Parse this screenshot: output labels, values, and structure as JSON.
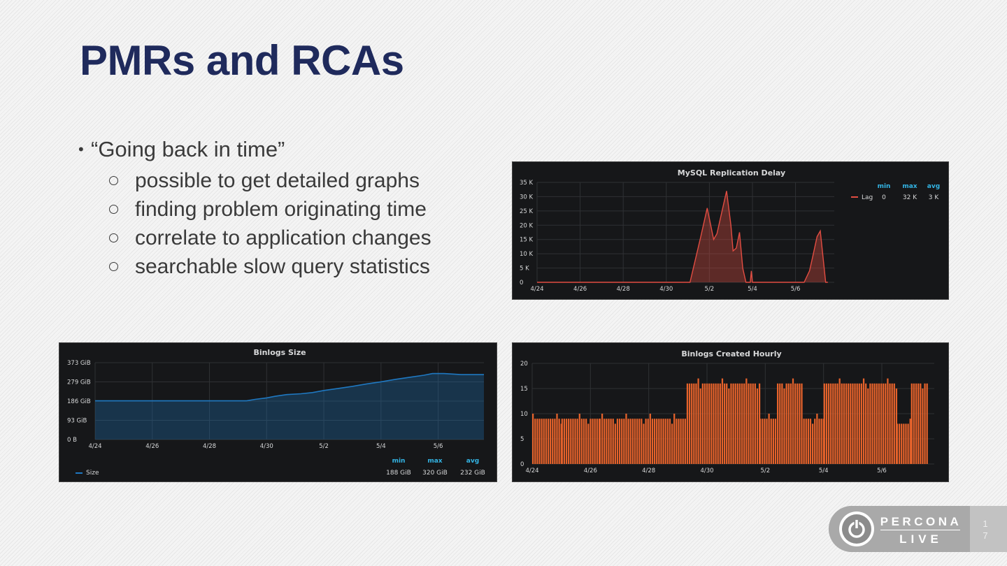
{
  "slide": {
    "title": "PMRs and RCAs",
    "bullet_main": "“Going back in time”",
    "sub_bullets": [
      "possible to get detailed graphs",
      "finding problem originating time",
      "correlate to application changes",
      "searchable slow query statistics"
    ],
    "page_number_1": "1",
    "page_number_2": "7"
  },
  "logo": {
    "top_text": "PERCONA",
    "bottom_text": "LIVE"
  },
  "colors": {
    "title": "#1f2a5c",
    "panel_bg": "#161719",
    "lag": "#e24d42",
    "size": "#1f78c1",
    "bars": "#e5622b",
    "legend_header": "#33b5e5"
  },
  "chart_data": [
    {
      "id": "replication",
      "type": "area",
      "title": "MySQL Replication Delay",
      "yticks": [
        "0",
        "5 K",
        "10 K",
        "15 K",
        "20 K",
        "25 K",
        "30 K",
        "35 K"
      ],
      "ylim": [
        0,
        35000
      ],
      "xticks": [
        "4/24",
        "4/26",
        "4/28",
        "4/30",
        "5/2",
        "5/4",
        "5/6"
      ],
      "xlim": [
        0,
        13.8
      ],
      "legend": {
        "headers": [
          "min",
          "max",
          "avg"
        ],
        "series_name": "Lag",
        "values": [
          "0",
          "32 K",
          "3 K"
        ]
      },
      "series": [
        {
          "name": "Lag",
          "points": [
            [
              0,
              0
            ],
            [
              6.9,
              0
            ],
            [
              7.1,
              0
            ],
            [
              7.6,
              16000
            ],
            [
              7.9,
              26000
            ],
            [
              8.2,
              15000
            ],
            [
              8.35,
              17000
            ],
            [
              8.8,
              32000
            ],
            [
              9.0,
              20000
            ],
            [
              9.1,
              11000
            ],
            [
              9.25,
              12000
            ],
            [
              9.4,
              17500
            ],
            [
              9.55,
              5000
            ],
            [
              9.7,
              0
            ],
            [
              9.9,
              0
            ],
            [
              9.95,
              4000
            ],
            [
              10.0,
              0
            ],
            [
              12.4,
              0
            ],
            [
              12.65,
              4000
            ],
            [
              12.8,
              9000
            ],
            [
              13.0,
              16000
            ],
            [
              13.15,
              18000
            ],
            [
              13.4,
              0
            ],
            [
              13.5,
              0
            ]
          ]
        }
      ]
    },
    {
      "id": "binlogs_size",
      "type": "area",
      "title": "Binlogs Size",
      "yticks": [
        "0 B",
        "93 GiB",
        "186 GiB",
        "279 GiB",
        "373 GiB"
      ],
      "ylim": [
        0,
        373
      ],
      "xticks": [
        "4/24",
        "4/26",
        "4/28",
        "4/30",
        "5/2",
        "5/4",
        "5/6"
      ],
      "xlim": [
        0,
        13.6
      ],
      "legend": {
        "headers": [
          "min",
          "max",
          "avg"
        ],
        "series_name": "Size",
        "values": [
          "188 GiB",
          "320 GiB",
          "232 GiB"
        ]
      },
      "series": [
        {
          "name": "Size",
          "points": [
            [
              0,
              188
            ],
            [
              5.3,
              188
            ],
            [
              5.6,
              195
            ],
            [
              6.0,
              202
            ],
            [
              6.3,
              210
            ],
            [
              6.7,
              218
            ],
            [
              7.2,
              222
            ],
            [
              7.6,
              228
            ],
            [
              8.0,
              238
            ],
            [
              8.5,
              248
            ],
            [
              9.0,
              258
            ],
            [
              9.5,
              270
            ],
            [
              10.0,
              280
            ],
            [
              10.5,
              292
            ],
            [
              11.0,
              302
            ],
            [
              11.5,
              312
            ],
            [
              11.8,
              320
            ],
            [
              12.2,
              320
            ],
            [
              12.8,
              315
            ],
            [
              13.6,
              315
            ]
          ]
        }
      ]
    },
    {
      "id": "binlogs_hourly",
      "type": "bar",
      "title": "Binlogs Created Hourly",
      "yticks": [
        "0",
        "5",
        "10",
        "15",
        "20"
      ],
      "ylim": [
        0,
        20
      ],
      "xticks": [
        "4/24",
        "4/26",
        "4/28",
        "4/30",
        "5/2",
        "5/4",
        "5/6"
      ],
      "xlim": [
        0,
        13.8
      ],
      "segments": [
        {
          "from": 0.0,
          "to": 1.0,
          "value": 9
        },
        {
          "from": 1.0,
          "to": 2.3,
          "value": 9
        },
        {
          "from": 2.3,
          "to": 5.3,
          "value": 9
        },
        {
          "from": 5.3,
          "to": 7.8,
          "value": 16
        },
        {
          "from": 7.8,
          "to": 8.4,
          "value": 9
        },
        {
          "from": 8.4,
          "to": 9.3,
          "value": 16
        },
        {
          "from": 9.3,
          "to": 10.0,
          "value": 9
        },
        {
          "from": 10.0,
          "to": 12.5,
          "value": 16
        },
        {
          "from": 12.5,
          "to": 13.0,
          "value": 8
        },
        {
          "from": 13.0,
          "to": 13.6,
          "value": 16
        }
      ]
    }
  ]
}
